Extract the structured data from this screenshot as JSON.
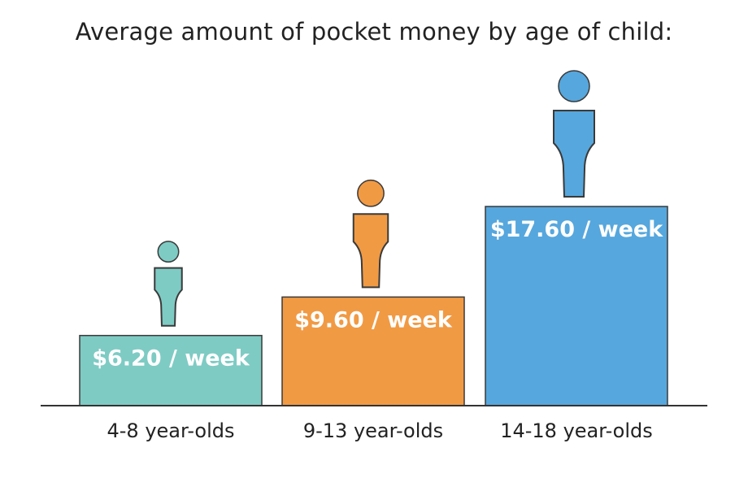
{
  "chart_data": {
    "type": "bar",
    "title": "Average amount of pocket money by age of child:",
    "xlabel": "",
    "ylabel": "",
    "categories": [
      "4-8 year-olds",
      "9-13 year-olds",
      "14-18 year-olds"
    ],
    "values": [
      6.2,
      9.6,
      17.6
    ],
    "value_labels": [
      "$6.20 / week",
      "$9.60 / week",
      "$17.60 / week"
    ],
    "colors": [
      "#7ecbc4",
      "#f19a44",
      "#56a7dd"
    ],
    "grid": false,
    "legend": "none",
    "icons": [
      "child-figure-icon",
      "child-figure-icon",
      "child-figure-icon"
    ]
  }
}
